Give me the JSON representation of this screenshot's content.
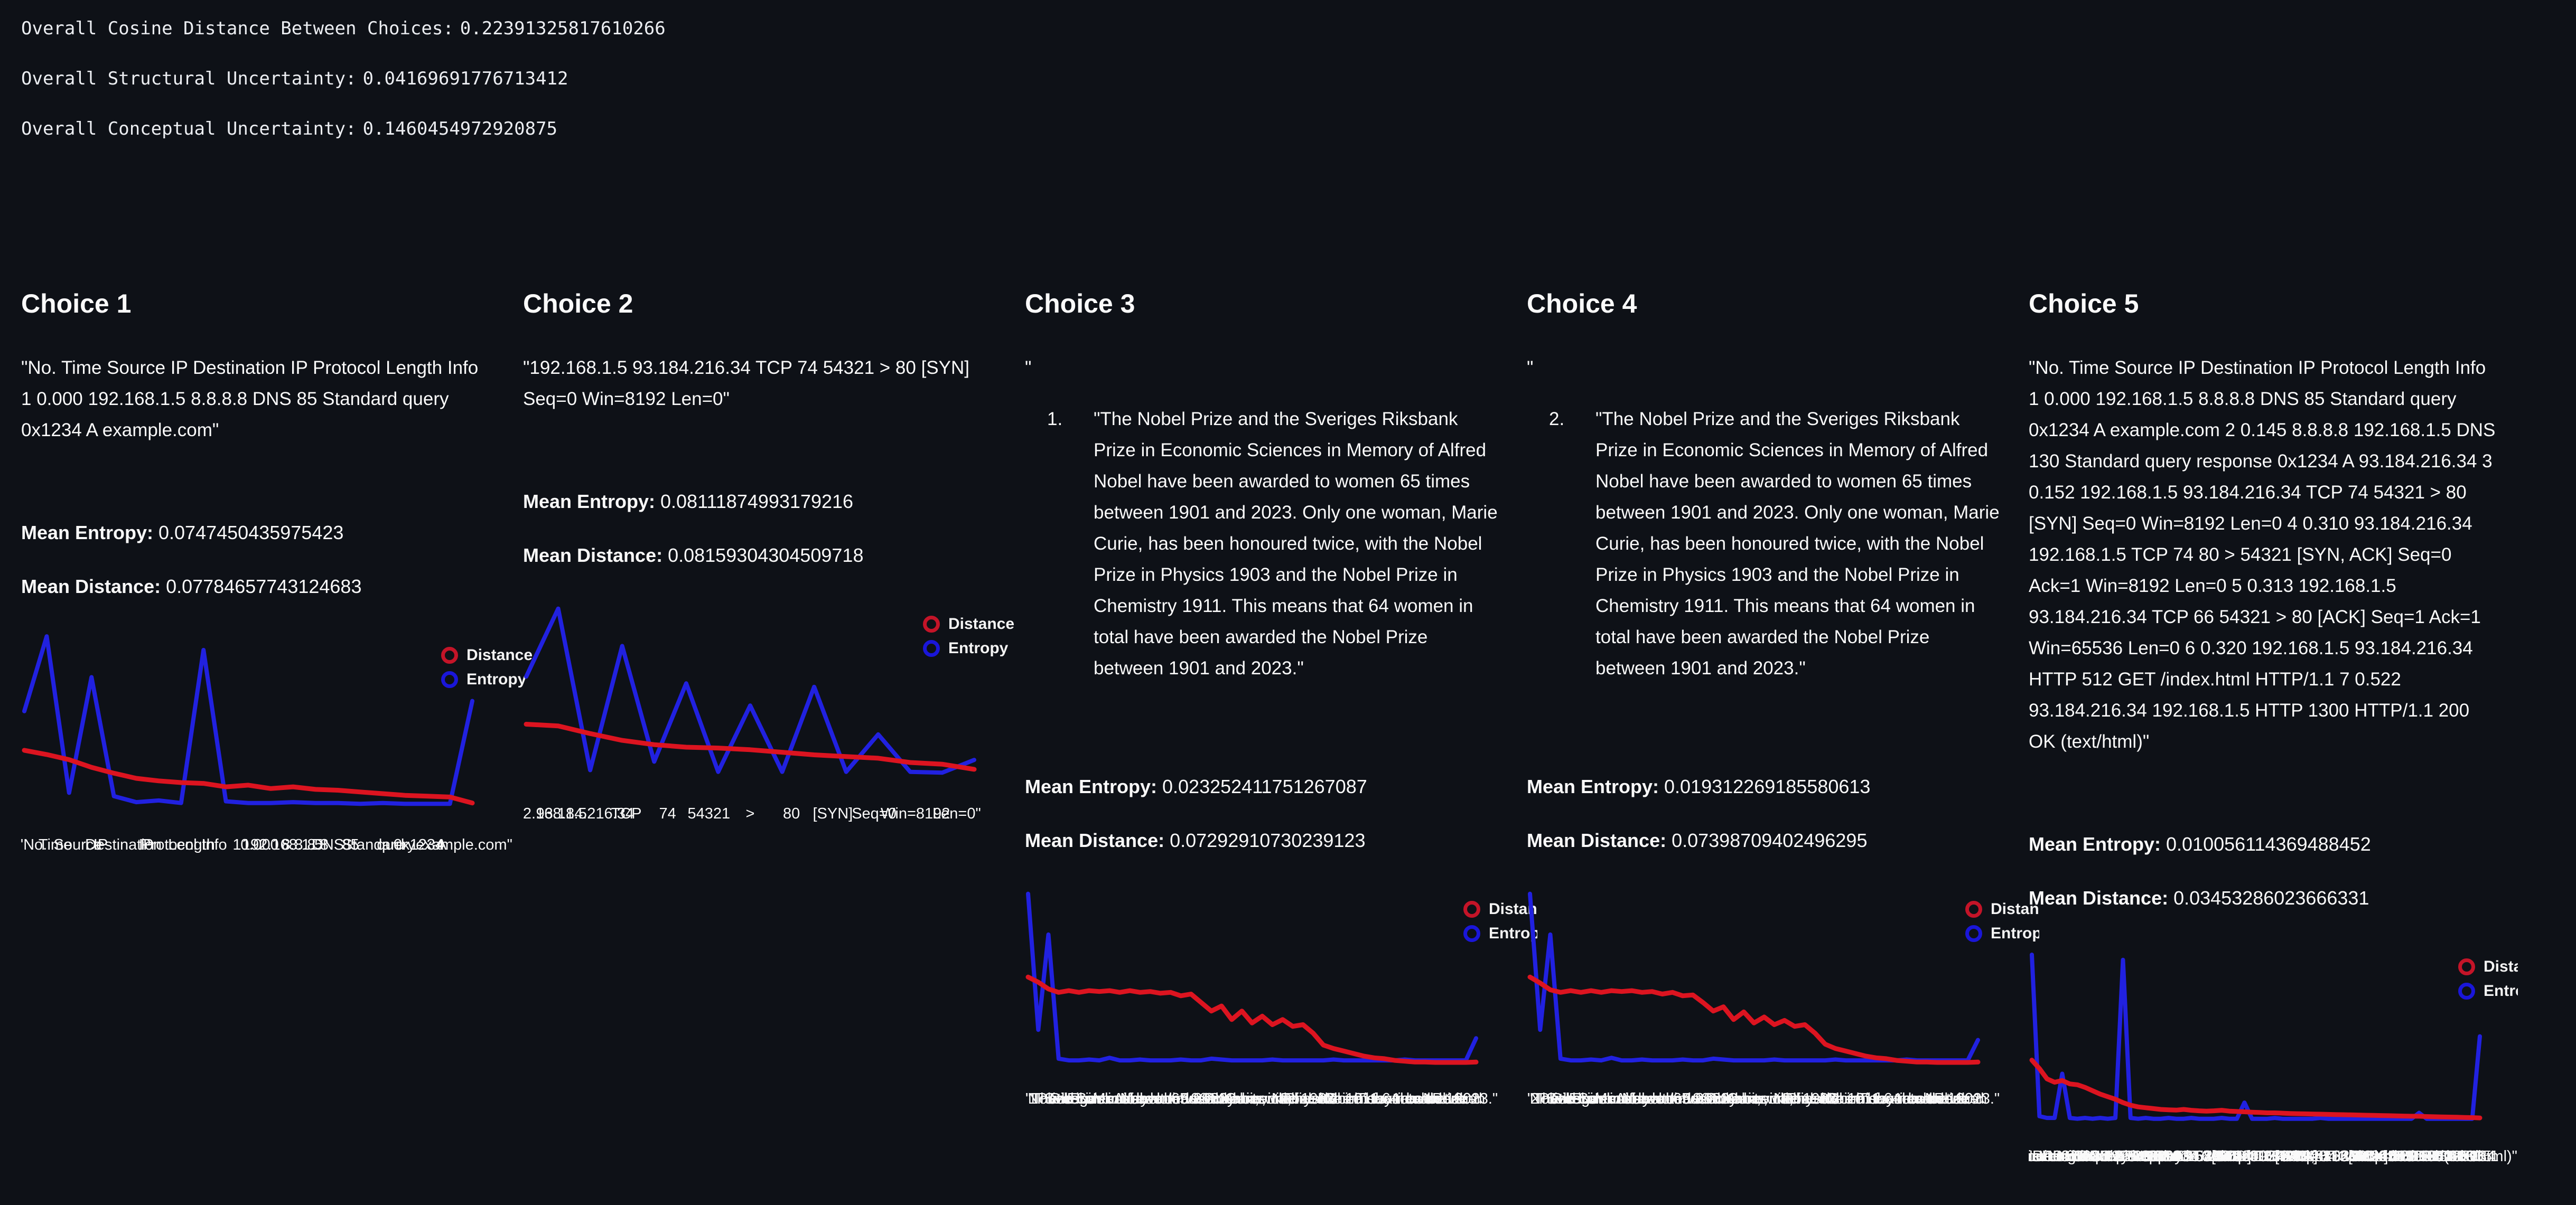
{
  "page": {
    "background": "#0e1117",
    "text_color": "#fafafa",
    "distance_color": "#dc1420",
    "entropy_color": "#2121e0"
  },
  "header": {
    "lines": [
      {
        "label": "Overall Cosine Distance Between Choices:",
        "value": "0.22391325817610266"
      },
      {
        "label": "Overall Structural Uncertainty:",
        "value": "0.04169691776713412"
      },
      {
        "label": "Overall Conceptual Uncertainty:",
        "value": "0.1460454972920875"
      }
    ]
  },
  "labels": {
    "mean_entropy": "Mean Entropy:",
    "mean_distance": "Mean Distance:"
  },
  "legend": {
    "distance": "Distance",
    "entropy": "Entropy"
  },
  "choices": [
    {
      "title": "Choice 1",
      "text": "\"No. Time Source IP Destination IP Protocol Length Info 1 0.000 192.168.1.5 8.8.8.8 DNS 85 Standard query 0x1234 A example.com\"",
      "mean_entropy": "0.0747450435975423",
      "mean_distance": "0.07784657743124683"
    },
    {
      "title": "Choice 2",
      "text": "\"192.168.1.5 93.184.216.34 TCP 74 54321 > 80 [SYN] Seq=0 Win=8192 Len=0\"",
      "mean_entropy": "0.08111874993179216",
      "mean_distance": "0.08159304304509718"
    },
    {
      "title": "Choice 3",
      "pre_quote": "\"",
      "list_number": "1.",
      "text": "\"The Nobel Prize and the Sveriges Riksbank Prize in Economic Sciences in Memory of Alfred Nobel have been awarded to women 65 times between 1901 and 2023. Only one woman, Marie Curie, has been honoured twice, with the Nobel Prize in Physics 1903 and the Nobel Prize in Chemistry 1911. This means that 64 women in total have been awarded the Nobel Prize between 1901 and 2023.\"",
      "mean_entropy": "0.023252411751267087",
      "mean_distance": "0.07292910730239123"
    },
    {
      "title": "Choice 4",
      "pre_quote": "\"",
      "list_number": "2.",
      "text": "\"The Nobel Prize and the Sveriges Riksbank Prize in Economic Sciences in Memory of Alfred Nobel have been awarded to women 65 times between 1901 and 2023. Only one woman, Marie Curie, has been honoured twice, with the Nobel Prize in Physics 1903 and the Nobel Prize in Chemistry 1911. This means that 64 women in total have been awarded the Nobel Prize between 1901 and 2023.\"",
      "mean_entropy": "0.019312269185580613",
      "mean_distance": "0.07398709402496295"
    },
    {
      "title": "Choice 5",
      "text": "\"No. Time Source IP Destination IP Protocol Length Info 1 0.000 192.168.1.5 8.8.8.8 DNS 85 Standard query 0x1234 A example.com 2 0.145 8.8.8.8 192.168.1.5 DNS 130 Standard query response 0x1234 A 93.184.216.34 3 0.152 192.168.1.5 93.184.216.34 TCP 74 54321 > 80 [SYN] Seq=0 Win=8192 Len=0 4 0.310 93.184.216.34 192.168.1.5 TCP 74 80 > 54321 [SYN, ACK] Seq=0 Ack=1 Win=8192 Len=0 5 0.313 192.168.1.5 93.184.216.34 TCP 66 54321 > 80 [ACK] Seq=1 Ack=1 Win=65536 Len=0 6 0.320 192.168.1.5 93.184.216.34 HTTP 512 GET /index.html HTTP/1.1 7 0.522 93.184.216.34 192.168.1.5 HTTP 1300 HTTP/1.1 200 OK (text/html)\"",
      "mean_entropy": "0.010056114369488452",
      "mean_distance": "0.03453286023666331"
    }
  ],
  "chart_data": [
    {
      "type": "line",
      "ylim": [
        0,
        1.05
      ],
      "grid": false,
      "legend_position": "upper right",
      "x_tokens": [
        "\"No.",
        "Time",
        "Source",
        "IP",
        "Destination",
        "IP",
        "Protocol",
        "Length",
        "Info",
        "1",
        "0.000",
        "192.168.1.5",
        "8.8.8.8",
        "DNS",
        "85",
        "Standard",
        "query",
        "0x1234",
        "A",
        "example.com\""
      ],
      "series": [
        {
          "name": "Distance",
          "color": "#dc1420",
          "values": [
            0.37,
            0.345,
            0.315,
            0.27,
            0.235,
            0.205,
            0.19,
            0.18,
            0.175,
            0.155,
            0.165,
            0.145,
            0.155,
            0.14,
            0.135,
            0.125,
            0.115,
            0.105,
            0.1,
            0.095,
            0.06
          ]
        },
        {
          "name": "Entropy",
          "color": "#2121e0",
          "values": [
            0.6,
            1.04,
            0.12,
            0.8,
            0.1,
            0.065,
            0.075,
            0.06,
            0.96,
            0.07,
            0.06,
            0.06,
            0.065,
            0.06,
            0.06,
            0.055,
            0.06,
            0.055,
            0.055,
            0.055,
            0.66
          ]
        }
      ]
    },
    {
      "type": "line",
      "ylim": [
        0,
        1.05
      ],
      "grid": false,
      "legend_position": "upper right",
      "x_tokens": [
        "\"192.168.1.5",
        "93.184.216.34",
        "TCP",
        "74",
        "54321",
        ">",
        "80",
        "[SYN]",
        "Seq=0",
        "Win=8192",
        "Len=0\""
      ],
      "series": [
        {
          "name": "Distance",
          "color": "#dc1420",
          "values": [
            0.34,
            0.33,
            0.285,
            0.245,
            0.22,
            0.205,
            0.2,
            0.19,
            0.175,
            0.16,
            0.15,
            0.14,
            0.115,
            0.105,
            0.075
          ]
        },
        {
          "name": "Entropy",
          "color": "#2121e0",
          "values": [
            0.62,
            1.02,
            0.07,
            0.8,
            0.12,
            0.58,
            0.06,
            0.45,
            0.06,
            0.56,
            0.06,
            0.28,
            0.06,
            0.055,
            0.13
          ]
        }
      ]
    },
    {
      "type": "line",
      "ylim": [
        0,
        1.05
      ],
      "grid": false,
      "legend_position": "upper right",
      "x_tokens": [
        "\"",
        "1.",
        "\"The",
        "Nobel",
        "Prize",
        "and",
        "the",
        "Sveriges",
        "Riksbank",
        "Prize",
        "in",
        "Economic",
        "Sciences",
        "in",
        "Memory",
        "of",
        "Alfred",
        "Nobel",
        "have",
        "been",
        "awarded",
        "to",
        "women",
        "65",
        "times",
        "between",
        "1901",
        "and",
        "2023.",
        "Only",
        "one",
        "woman,",
        "Marie",
        "Curie,",
        "has",
        "been",
        "honoured",
        "twice,",
        "with",
        "the",
        "Nobel",
        "Prize",
        "in",
        "Physics",
        "1903",
        "and",
        "the",
        "Nobel",
        "Prize",
        "in",
        "Chemistry",
        "1911.",
        "This",
        "means",
        "that",
        "64",
        "women",
        "in",
        "total",
        "have",
        "been",
        "awarded",
        "the",
        "Nobel",
        "Prize",
        "between",
        "1901",
        "and",
        "2023.\""
      ],
      "series": [
        {
          "name": "Distance",
          "color": "#dc1420",
          "values": [
            0.53,
            0.5,
            0.46,
            0.44,
            0.45,
            0.44,
            0.45,
            0.445,
            0.45,
            0.44,
            0.45,
            0.44,
            0.445,
            0.435,
            0.44,
            0.42,
            0.43,
            0.38,
            0.33,
            0.36,
            0.28,
            0.33,
            0.26,
            0.3,
            0.25,
            0.28,
            0.24,
            0.25,
            0.2,
            0.13,
            0.11,
            0.095,
            0.08,
            0.065,
            0.055,
            0.05,
            0.04,
            0.035,
            0.03,
            0.03,
            0.028,
            0.028,
            0.028,
            0.028,
            0.03
          ]
        },
        {
          "name": "Entropy",
          "color": "#2121e0",
          "values": [
            1.02,
            0.22,
            0.78,
            0.05,
            0.04,
            0.04,
            0.045,
            0.04,
            0.055,
            0.04,
            0.04,
            0.045,
            0.04,
            0.04,
            0.04,
            0.045,
            0.04,
            0.04,
            0.05,
            0.045,
            0.04,
            0.04,
            0.04,
            0.04,
            0.045,
            0.04,
            0.04,
            0.04,
            0.04,
            0.04,
            0.045,
            0.04,
            0.04,
            0.04,
            0.04,
            0.04,
            0.04,
            0.045,
            0.04,
            0.04,
            0.04,
            0.04,
            0.04,
            0.04,
            0.17
          ]
        }
      ]
    },
    {
      "type": "line",
      "ylim": [
        0,
        1.05
      ],
      "grid": false,
      "legend_position": "upper right",
      "x_tokens": [
        "\"",
        "2.",
        "\"The",
        "Nobel",
        "Prize",
        "and",
        "the",
        "Sveriges",
        "Riksbank",
        "Prize",
        "in",
        "Economic",
        "Sciences",
        "in",
        "Memory",
        "of",
        "Alfred",
        "Nobel",
        "have",
        "been",
        "awarded",
        "to",
        "women",
        "65",
        "times",
        "between",
        "1901",
        "and",
        "2023.",
        "Only",
        "one",
        "woman,",
        "Marie",
        "Curie,",
        "has",
        "been",
        "honoured",
        "twice,",
        "with",
        "the",
        "Nobel",
        "Prize",
        "in",
        "Physics",
        "1903",
        "and",
        "the",
        "Nobel",
        "Prize",
        "in",
        "Chemistry",
        "1911.",
        "This",
        "means",
        "that",
        "64",
        "women",
        "in",
        "total",
        "have",
        "been",
        "awarded",
        "the",
        "Nobel",
        "Prize",
        "between",
        "1901",
        "and",
        "2023.\""
      ],
      "series": [
        {
          "name": "Distance",
          "color": "#dc1420",
          "values": [
            0.53,
            0.495,
            0.455,
            0.44,
            0.45,
            0.44,
            0.45,
            0.44,
            0.45,
            0.445,
            0.45,
            0.44,
            0.445,
            0.43,
            0.44,
            0.42,
            0.425,
            0.38,
            0.33,
            0.355,
            0.28,
            0.325,
            0.26,
            0.295,
            0.25,
            0.275,
            0.24,
            0.25,
            0.2,
            0.135,
            0.11,
            0.095,
            0.08,
            0.065,
            0.055,
            0.05,
            0.04,
            0.035,
            0.03,
            0.03,
            0.028,
            0.028,
            0.028,
            0.028,
            0.03
          ]
        },
        {
          "name": "Entropy",
          "color": "#2121e0",
          "values": [
            1.02,
            0.22,
            0.78,
            0.05,
            0.04,
            0.04,
            0.045,
            0.04,
            0.055,
            0.04,
            0.04,
            0.045,
            0.04,
            0.04,
            0.04,
            0.045,
            0.04,
            0.04,
            0.05,
            0.045,
            0.04,
            0.04,
            0.04,
            0.04,
            0.045,
            0.04,
            0.04,
            0.04,
            0.04,
            0.04,
            0.045,
            0.04,
            0.04,
            0.04,
            0.04,
            0.04,
            0.04,
            0.045,
            0.04,
            0.04,
            0.04,
            0.04,
            0.04,
            0.04,
            0.16
          ]
        }
      ]
    },
    {
      "type": "line",
      "ylim": [
        0,
        1.05
      ],
      "grid": false,
      "legend_position": "upper right",
      "x_tokens": [
        "\"No.",
        "Time",
        "Source",
        "IP",
        "Destination",
        "IP",
        "Protocol",
        "Length",
        "Info",
        "1",
        "0.000",
        "192.168.1.5",
        "8.8.8.8",
        "DNS",
        "85",
        "Standard",
        "query",
        "0x1234",
        "A",
        "example.com",
        "2",
        "0.145",
        "8.8.8.8",
        "192.168.1.5",
        "DNS",
        "130",
        "Standard",
        "query",
        "response",
        "0x1234",
        "A",
        "93.184.216.34",
        "3",
        "0.152",
        "192.168.1.5",
        "93.184.216.34",
        "TCP",
        "74",
        "54321",
        ">",
        "80",
        "[SYN]",
        "Seq=0",
        "Win=8192",
        "Len=0",
        "4",
        "0.310",
        "93.184.216.34",
        "192.168.1.5",
        "TCP",
        "74",
        "80",
        ">",
        "54321",
        "[SYN,",
        "ACK]",
        "Seq=0",
        "Ack=1",
        "Win=8192",
        "Len=0",
        "5",
        "0.313",
        "192.168.1.5",
        "93.184.216.34",
        "TCP",
        "66",
        "54321",
        ">",
        "80",
        "[ACK]",
        "Seq=1",
        "Ack=1",
        "Win=65536",
        "Len=0",
        "6",
        "0.320",
        "192.168.1.5",
        "93.184.216.34",
        "HTTP",
        "512",
        "GET",
        "/index.html",
        "HTTP/1.1",
        "7",
        "0.522",
        "93.184.216.34",
        "192.168.1.5",
        "HTTP",
        "1300",
        "HTTP/1.1",
        "200",
        "OK",
        "(text/html)\""
      ],
      "series": [
        {
          "name": "Distance",
          "color": "#dc1420",
          "values": [
            0.38,
            0.33,
            0.27,
            0.25,
            0.26,
            0.24,
            0.235,
            0.22,
            0.2,
            0.18,
            0.165,
            0.15,
            0.13,
            0.115,
            0.105,
            0.1,
            0.095,
            0.09,
            0.088,
            0.086,
            0.09,
            0.085,
            0.082,
            0.08,
            0.082,
            0.085,
            0.08,
            0.078,
            0.076,
            0.074,
            0.072,
            0.07,
            0.07,
            0.068,
            0.066,
            0.065,
            0.064,
            0.063,
            0.062,
            0.061,
            0.06,
            0.059,
            0.058,
            0.057,
            0.056,
            0.055,
            0.054,
            0.053,
            0.052,
            0.051,
            0.05,
            0.05,
            0.048,
            0.047,
            0.046,
            0.045,
            0.044,
            0.043,
            0.042,
            0.04
          ]
        },
        {
          "name": "Entropy",
          "color": "#2121e0",
          "values": [
            1.0,
            0.05,
            0.04,
            0.04,
            0.3,
            0.04,
            0.035,
            0.04,
            0.035,
            0.04,
            0.035,
            0.04,
            0.97,
            0.04,
            0.035,
            0.04,
            0.035,
            0.035,
            0.04,
            0.035,
            0.035,
            0.04,
            0.035,
            0.035,
            0.035,
            0.04,
            0.035,
            0.035,
            0.13,
            0.035,
            0.035,
            0.035,
            0.04,
            0.035,
            0.035,
            0.035,
            0.035,
            0.035,
            0.04,
            0.035,
            0.035,
            0.035,
            0.035,
            0.035,
            0.035,
            0.035,
            0.035,
            0.035,
            0.035,
            0.035,
            0.035,
            0.07,
            0.035,
            0.035,
            0.035,
            0.035,
            0.035,
            0.035,
            0.035,
            0.52
          ]
        }
      ]
    }
  ]
}
